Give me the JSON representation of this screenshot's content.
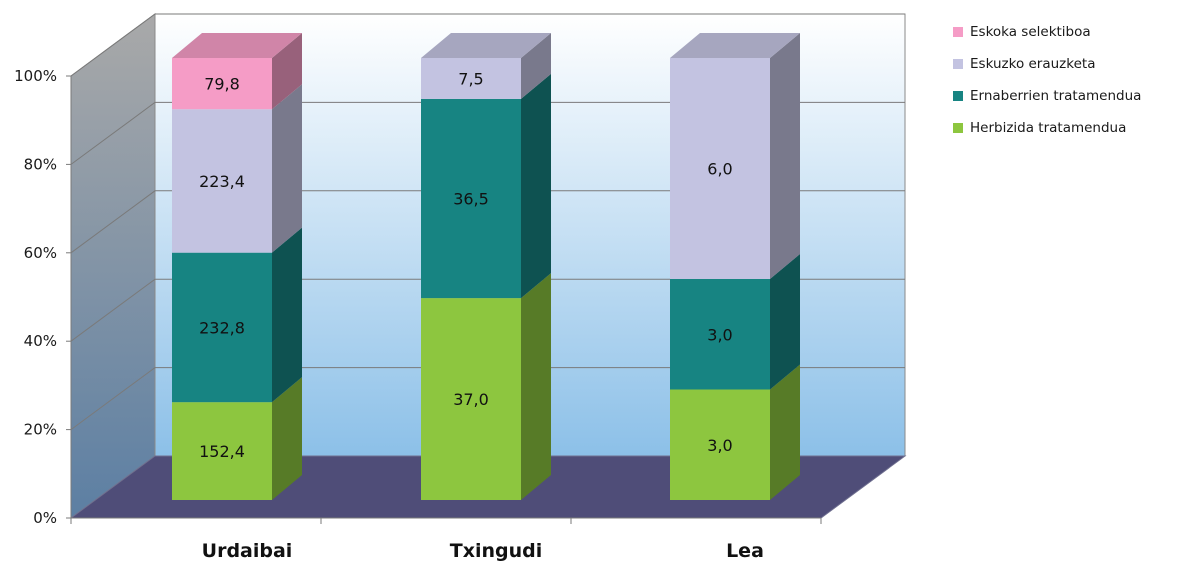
{
  "chart_data": {
    "type": "bar",
    "stacking": "percent",
    "three_d": true,
    "categories": [
      "Urdaibai",
      "Txingudi",
      "Lea"
    ],
    "series": [
      {
        "name": "Herbizida tratamendua",
        "values": [
          152.4,
          37.0,
          3.0
        ],
        "labels": [
          "152,4",
          "37,0",
          "3,0"
        ],
        "color": "#8dc63f"
      },
      {
        "name": "Ernaberrien tratamendua",
        "values": [
          232.8,
          36.5,
          3.0
        ],
        "labels": [
          "232,8",
          "36,5",
          "3,0"
        ],
        "color": "#178482"
      },
      {
        "name": "Eskuzko erauzketa",
        "values": [
          223.4,
          7.5,
          6.0
        ],
        "labels": [
          "223,4",
          "7,5",
          "6,0"
        ],
        "color": "#c3c3e1"
      },
      {
        "name": "Eskoka selektiboa",
        "values": [
          79.8,
          0,
          0
        ],
        "labels": [
          "79,8",
          "",
          ""
        ],
        "color": "#f59cc6"
      }
    ],
    "yticks": [
      "0%",
      "20%",
      "40%",
      "60%",
      "80%",
      "100%"
    ],
    "ylim": [
      0,
      100
    ],
    "grid": true,
    "legend_position": "right",
    "colors": {
      "floor": "#4f4d78",
      "wall": "#9ec9ea",
      "side_wall": "#7f9bb6"
    }
  },
  "legend_order": [
    3,
    2,
    1,
    0
  ]
}
